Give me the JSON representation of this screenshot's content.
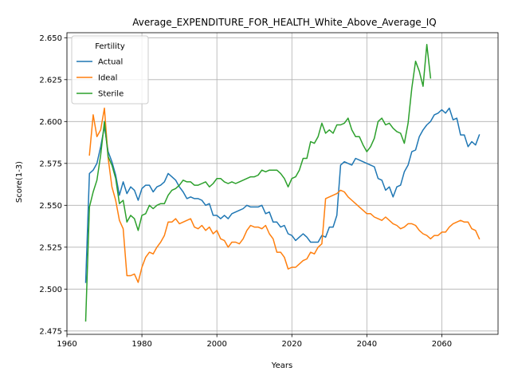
{
  "chart_data": {
    "type": "line",
    "title": "Average_EXPENDITURE_FOR_HEALTH_White_Above_Average_IQ",
    "xlabel": "Years",
    "ylabel": "Score(1-3)",
    "xlim": [
      1960,
      2075
    ],
    "ylim": [
      2.473,
      2.653
    ],
    "xticks": [
      1960,
      1980,
      2000,
      2020,
      2040,
      2060
    ],
    "yticks": [
      2.475,
      2.5,
      2.525,
      2.55,
      2.575,
      2.6,
      2.625,
      2.65
    ],
    "grid": true,
    "legend": {
      "title": "Fertility",
      "placement": "upper-left"
    },
    "series": [
      {
        "name": "Actual",
        "color": "#1f77b4",
        "points": [
          [
            1965,
            2.504
          ],
          [
            1966,
            2.569
          ],
          [
            1967,
            2.571
          ],
          [
            1968,
            2.575
          ],
          [
            1969,
            2.585
          ],
          [
            1970,
            2.597
          ],
          [
            1971,
            2.582
          ],
          [
            1972,
            2.576
          ],
          [
            1973,
            2.568
          ],
          [
            1974,
            2.556
          ],
          [
            1975,
            2.564
          ],
          [
            1976,
            2.557
          ],
          [
            1977,
            2.561
          ],
          [
            1978,
            2.559
          ],
          [
            1979,
            2.553
          ],
          [
            1980,
            2.56
          ],
          [
            1981,
            2.562
          ],
          [
            1982,
            2.562
          ],
          [
            1983,
            2.558
          ],
          [
            1984,
            2.561
          ],
          [
            1985,
            2.562
          ],
          [
            1986,
            2.564
          ],
          [
            1987,
            2.569
          ],
          [
            1988,
            2.567
          ],
          [
            1989,
            2.565
          ],
          [
            1990,
            2.561
          ],
          [
            1991,
            2.558
          ],
          [
            1992,
            2.554
          ],
          [
            1993,
            2.555
          ],
          [
            1994,
            2.554
          ],
          [
            1995,
            2.554
          ],
          [
            1996,
            2.553
          ],
          [
            1997,
            2.55
          ],
          [
            1998,
            2.551
          ],
          [
            1999,
            2.544
          ],
          [
            2000,
            2.544
          ],
          [
            2001,
            2.542
          ],
          [
            2002,
            2.544
          ],
          [
            2003,
            2.542
          ],
          [
            2004,
            2.545
          ],
          [
            2005,
            2.546
          ],
          [
            2006,
            2.547
          ],
          [
            2007,
            2.548
          ],
          [
            2008,
            2.55
          ],
          [
            2009,
            2.549
          ],
          [
            2010,
            2.549
          ],
          [
            2011,
            2.549
          ],
          [
            2012,
            2.55
          ],
          [
            2013,
            2.545
          ],
          [
            2014,
            2.546
          ],
          [
            2015,
            2.54
          ],
          [
            2016,
            2.54
          ],
          [
            2017,
            2.537
          ],
          [
            2018,
            2.538
          ],
          [
            2019,
            2.533
          ],
          [
            2020,
            2.532
          ],
          [
            2021,
            2.529
          ],
          [
            2022,
            2.531
          ],
          [
            2023,
            2.533
          ],
          [
            2024,
            2.531
          ],
          [
            2025,
            2.528
          ],
          [
            2026,
            2.528
          ],
          [
            2027,
            2.528
          ],
          [
            2028,
            2.532
          ],
          [
            2029,
            2.531
          ],
          [
            2030,
            2.537
          ],
          [
            2031,
            2.537
          ],
          [
            2032,
            2.544
          ],
          [
            2033,
            2.574
          ],
          [
            2034,
            2.576
          ],
          [
            2035,
            2.575
          ],
          [
            2036,
            2.574
          ],
          [
            2037,
            2.578
          ],
          [
            2038,
            2.577
          ],
          [
            2039,
            2.576
          ],
          [
            2040,
            2.575
          ],
          [
            2041,
            2.574
          ],
          [
            2042,
            2.573
          ],
          [
            2043,
            2.566
          ],
          [
            2044,
            2.565
          ],
          [
            2045,
            2.559
          ],
          [
            2046,
            2.561
          ],
          [
            2047,
            2.555
          ],
          [
            2048,
            2.561
          ],
          [
            2049,
            2.562
          ],
          [
            2050,
            2.57
          ],
          [
            2051,
            2.574
          ],
          [
            2052,
            2.582
          ],
          [
            2053,
            2.583
          ],
          [
            2054,
            2.591
          ],
          [
            2055,
            2.595
          ],
          [
            2056,
            2.598
          ],
          [
            2057,
            2.6
          ],
          [
            2058,
            2.604
          ],
          [
            2059,
            2.605
          ],
          [
            2060,
            2.607
          ],
          [
            2061,
            2.605
          ],
          [
            2062,
            2.608
          ],
          [
            2063,
            2.601
          ],
          [
            2064,
            2.602
          ],
          [
            2065,
            2.592
          ],
          [
            2066,
            2.592
          ],
          [
            2067,
            2.585
          ],
          [
            2068,
            2.588
          ],
          [
            2069,
            2.586
          ],
          [
            2070,
            2.592
          ]
        ]
      },
      {
        "name": "Ideal",
        "color": "#ff7f0e",
        "points": [
          [
            1966,
            2.58
          ],
          [
            1967,
            2.604
          ],
          [
            1968,
            2.591
          ],
          [
            1969,
            2.595
          ],
          [
            1970,
            2.608
          ],
          [
            1971,
            2.578
          ],
          [
            1972,
            2.561
          ],
          [
            1973,
            2.553
          ],
          [
            1974,
            2.541
          ],
          [
            1975,
            2.536
          ],
          [
            1976,
            2.508
          ],
          [
            1977,
            2.508
          ],
          [
            1978,
            2.509
          ],
          [
            1979,
            2.504
          ],
          [
            1980,
            2.513
          ],
          [
            1981,
            2.519
          ],
          [
            1982,
            2.522
          ],
          [
            1983,
            2.521
          ],
          [
            1984,
            2.525
          ],
          [
            1985,
            2.528
          ],
          [
            1986,
            2.532
          ],
          [
            1987,
            2.54
          ],
          [
            1988,
            2.54
          ],
          [
            1989,
            2.542
          ],
          [
            1990,
            2.539
          ],
          [
            1991,
            2.54
          ],
          [
            1992,
            2.541
          ],
          [
            1993,
            2.542
          ],
          [
            1994,
            2.537
          ],
          [
            1995,
            2.536
          ],
          [
            1996,
            2.538
          ],
          [
            1997,
            2.535
          ],
          [
            1998,
            2.537
          ],
          [
            1999,
            2.533
          ],
          [
            2000,
            2.535
          ],
          [
            2001,
            2.53
          ],
          [
            2002,
            2.529
          ],
          [
            2003,
            2.525
          ],
          [
            2004,
            2.528
          ],
          [
            2005,
            2.528
          ],
          [
            2006,
            2.527
          ],
          [
            2007,
            2.53
          ],
          [
            2008,
            2.535
          ],
          [
            2009,
            2.538
          ],
          [
            2010,
            2.537
          ],
          [
            2011,
            2.537
          ],
          [
            2012,
            2.536
          ],
          [
            2013,
            2.538
          ],
          [
            2014,
            2.533
          ],
          [
            2015,
            2.53
          ],
          [
            2016,
            2.522
          ],
          [
            2017,
            2.522
          ],
          [
            2018,
            2.519
          ],
          [
            2019,
            2.512
          ],
          [
            2020,
            2.513
          ],
          [
            2021,
            2.513
          ],
          [
            2022,
            2.515
          ],
          [
            2023,
            2.517
          ],
          [
            2024,
            2.518
          ],
          [
            2025,
            2.522
          ],
          [
            2026,
            2.521
          ],
          [
            2027,
            2.525
          ],
          [
            2028,
            2.527
          ],
          [
            2029,
            2.554
          ],
          [
            2030,
            2.555
          ],
          [
            2031,
            2.556
          ],
          [
            2032,
            2.557
          ],
          [
            2033,
            2.559
          ],
          [
            2034,
            2.558
          ],
          [
            2035,
            2.555
          ],
          [
            2036,
            2.553
          ],
          [
            2037,
            2.551
          ],
          [
            2038,
            2.549
          ],
          [
            2039,
            2.547
          ],
          [
            2040,
            2.545
          ],
          [
            2041,
            2.545
          ],
          [
            2042,
            2.543
          ],
          [
            2043,
            2.542
          ],
          [
            2044,
            2.541
          ],
          [
            2045,
            2.543
          ],
          [
            2046,
            2.541
          ],
          [
            2047,
            2.539
          ],
          [
            2048,
            2.538
          ],
          [
            2049,
            2.536
          ],
          [
            2050,
            2.537
          ],
          [
            2051,
            2.539
          ],
          [
            2052,
            2.539
          ],
          [
            2053,
            2.538
          ],
          [
            2054,
            2.535
          ],
          [
            2055,
            2.533
          ],
          [
            2056,
            2.532
          ],
          [
            2057,
            2.53
          ],
          [
            2058,
            2.532
          ],
          [
            2059,
            2.532
          ],
          [
            2060,
            2.534
          ],
          [
            2061,
            2.534
          ],
          [
            2062,
            2.537
          ],
          [
            2063,
            2.539
          ],
          [
            2064,
            2.54
          ],
          [
            2065,
            2.541
          ],
          [
            2066,
            2.54
          ],
          [
            2067,
            2.54
          ],
          [
            2068,
            2.536
          ],
          [
            2069,
            2.535
          ],
          [
            2070,
            2.53
          ]
        ]
      },
      {
        "name": "Sterile",
        "color": "#2ca02c",
        "points": [
          [
            1965,
            2.481
          ],
          [
            1966,
            2.549
          ],
          [
            1967,
            2.558
          ],
          [
            1968,
            2.565
          ],
          [
            1969,
            2.58
          ],
          [
            1970,
            2.6
          ],
          [
            1971,
            2.579
          ],
          [
            1972,
            2.574
          ],
          [
            1973,
            2.566
          ],
          [
            1974,
            2.551
          ],
          [
            1975,
            2.553
          ],
          [
            1976,
            2.54
          ],
          [
            1977,
            2.544
          ],
          [
            1978,
            2.542
          ],
          [
            1979,
            2.535
          ],
          [
            1980,
            2.544
          ],
          [
            1981,
            2.545
          ],
          [
            1982,
            2.55
          ],
          [
            1983,
            2.548
          ],
          [
            1984,
            2.55
          ],
          [
            1985,
            2.551
          ],
          [
            1986,
            2.551
          ],
          [
            1987,
            2.556
          ],
          [
            1988,
            2.559
          ],
          [
            1989,
            2.56
          ],
          [
            1990,
            2.562
          ],
          [
            1991,
            2.565
          ],
          [
            1992,
            2.564
          ],
          [
            1993,
            2.564
          ],
          [
            1994,
            2.562
          ],
          [
            1995,
            2.562
          ],
          [
            1996,
            2.563
          ],
          [
            1997,
            2.564
          ],
          [
            1998,
            2.561
          ],
          [
            1999,
            2.563
          ],
          [
            2000,
            2.566
          ],
          [
            2001,
            2.566
          ],
          [
            2002,
            2.564
          ],
          [
            2003,
            2.563
          ],
          [
            2004,
            2.564
          ],
          [
            2005,
            2.563
          ],
          [
            2006,
            2.564
          ],
          [
            2007,
            2.565
          ],
          [
            2008,
            2.566
          ],
          [
            2009,
            2.567
          ],
          [
            2010,
            2.567
          ],
          [
            2011,
            2.568
          ],
          [
            2012,
            2.571
          ],
          [
            2013,
            2.57
          ],
          [
            2014,
            2.571
          ],
          [
            2015,
            2.571
          ],
          [
            2016,
            2.571
          ],
          [
            2017,
            2.569
          ],
          [
            2018,
            2.566
          ],
          [
            2019,
            2.561
          ],
          [
            2020,
            2.566
          ],
          [
            2021,
            2.567
          ],
          [
            2022,
            2.571
          ],
          [
            2023,
            2.578
          ],
          [
            2024,
            2.578
          ],
          [
            2025,
            2.588
          ],
          [
            2026,
            2.587
          ],
          [
            2027,
            2.591
          ],
          [
            2028,
            2.599
          ],
          [
            2029,
            2.593
          ],
          [
            2030,
            2.595
          ],
          [
            2031,
            2.593
          ],
          [
            2032,
            2.598
          ],
          [
            2033,
            2.598
          ],
          [
            2034,
            2.599
          ],
          [
            2035,
            2.602
          ],
          [
            2036,
            2.595
          ],
          [
            2037,
            2.591
          ],
          [
            2038,
            2.591
          ],
          [
            2039,
            2.586
          ],
          [
            2040,
            2.582
          ],
          [
            2041,
            2.585
          ],
          [
            2042,
            2.59
          ],
          [
            2043,
            2.6
          ],
          [
            2044,
            2.602
          ],
          [
            2045,
            2.598
          ],
          [
            2046,
            2.599
          ],
          [
            2047,
            2.596
          ],
          [
            2048,
            2.594
          ],
          [
            2049,
            2.593
          ],
          [
            2050,
            2.587
          ],
          [
            2051,
            2.599
          ],
          [
            2052,
            2.62
          ],
          [
            2053,
            2.636
          ],
          [
            2054,
            2.63
          ],
          [
            2055,
            2.621
          ],
          [
            2056,
            2.646
          ],
          [
            2057,
            2.626
          ]
        ]
      }
    ]
  }
}
